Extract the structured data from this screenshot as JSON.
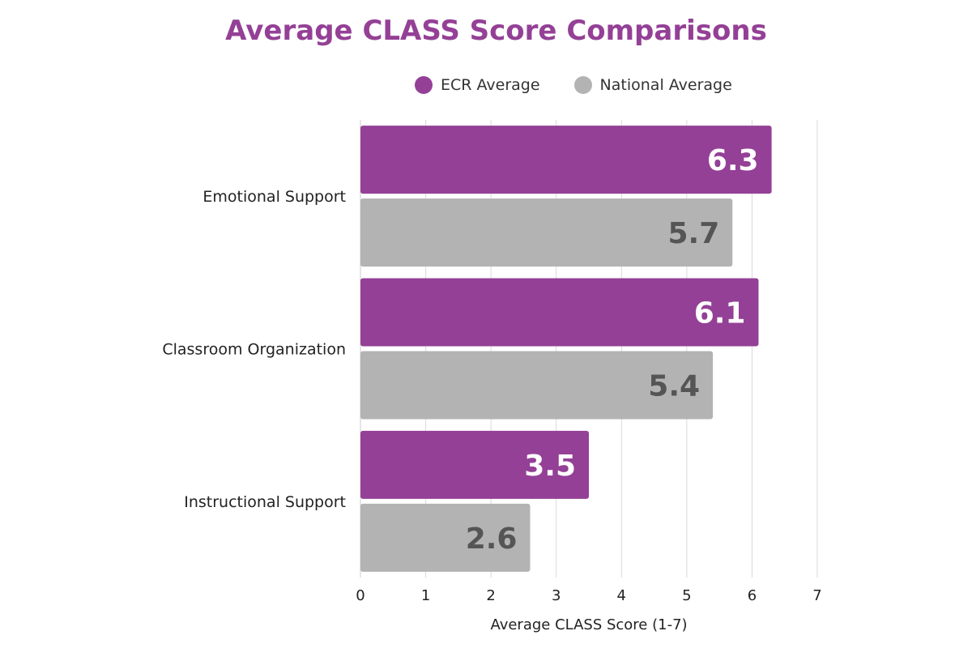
{
  "chart_data": {
    "type": "bar",
    "orientation": "horizontal",
    "title": "Average CLASS Score Comparisons",
    "xlabel": "Average CLASS Score (1-7)",
    "ylabel": "",
    "xlim": [
      0,
      7
    ],
    "ticks": [
      "0",
      "1",
      "2",
      "3",
      "4",
      "5",
      "6",
      "7"
    ],
    "grid": true,
    "legend_position": "top",
    "categories": [
      "Emotional Support",
      "Classroom Organization",
      "Instructional Support"
    ],
    "series": [
      {
        "name": "ECR Average",
        "color": "#944096",
        "label_color": "#ffffff",
        "values": [
          6.3,
          6.1,
          3.5
        ]
      },
      {
        "name": "National Average",
        "color": "#b3b3b3",
        "label_color": "#555555",
        "values": [
          5.7,
          5.4,
          2.6
        ]
      }
    ],
    "value_labels": [
      [
        "6.3",
        "6.1",
        "3.5"
      ],
      [
        "5.7",
        "5.4",
        "2.6"
      ]
    ]
  }
}
